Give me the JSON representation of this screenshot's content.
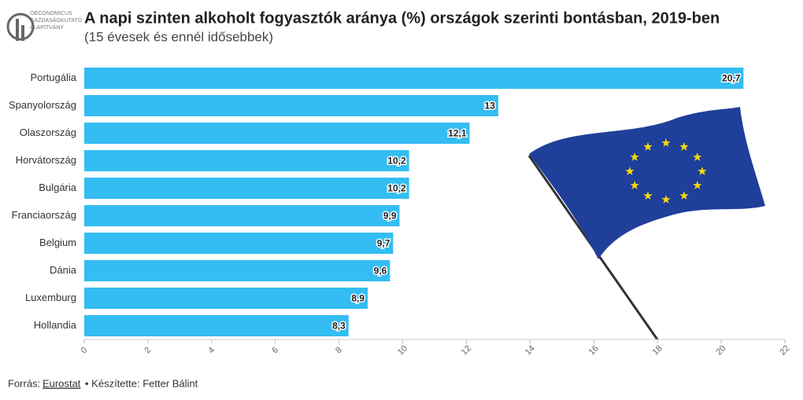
{
  "chart_data": {
    "type": "bar",
    "orientation": "horizontal",
    "title": "A napi szinten alkoholt fogyasztók aránya (%) országok szerinti bontásban, 2019-ben",
    "subtitle": "(15 évesek és ennél idősebbek)",
    "logo_text": [
      "OECONOMICUS",
      "GAZDASÁGKUTATÓ",
      "ALAPÍTVÁNY"
    ],
    "categories": [
      "Portugália",
      "Spanyolország",
      "Olaszország",
      "Horvátország",
      "Bulgária",
      "Franciaország",
      "Belgium",
      "Dánia",
      "Luxemburg",
      "Hollandia"
    ],
    "values": [
      20.7,
      13,
      12.1,
      10.2,
      10.2,
      9.9,
      9.7,
      9.6,
      8.9,
      8.3
    ],
    "value_labels": [
      "20,7",
      "13",
      "12,1",
      "10,2",
      "10,2",
      "9,9",
      "9,7",
      "9,6",
      "8,9",
      "8,3"
    ],
    "color": "#33bdf2",
    "xlim": [
      0,
      22
    ],
    "xticks": [
      0,
      2,
      4,
      6,
      8,
      10,
      12,
      14,
      16,
      18,
      20,
      22
    ],
    "grid": false,
    "source_prefix": "Forrás:",
    "source": "Eurostat",
    "credit": "• Készítette: Fetter Bálint"
  }
}
